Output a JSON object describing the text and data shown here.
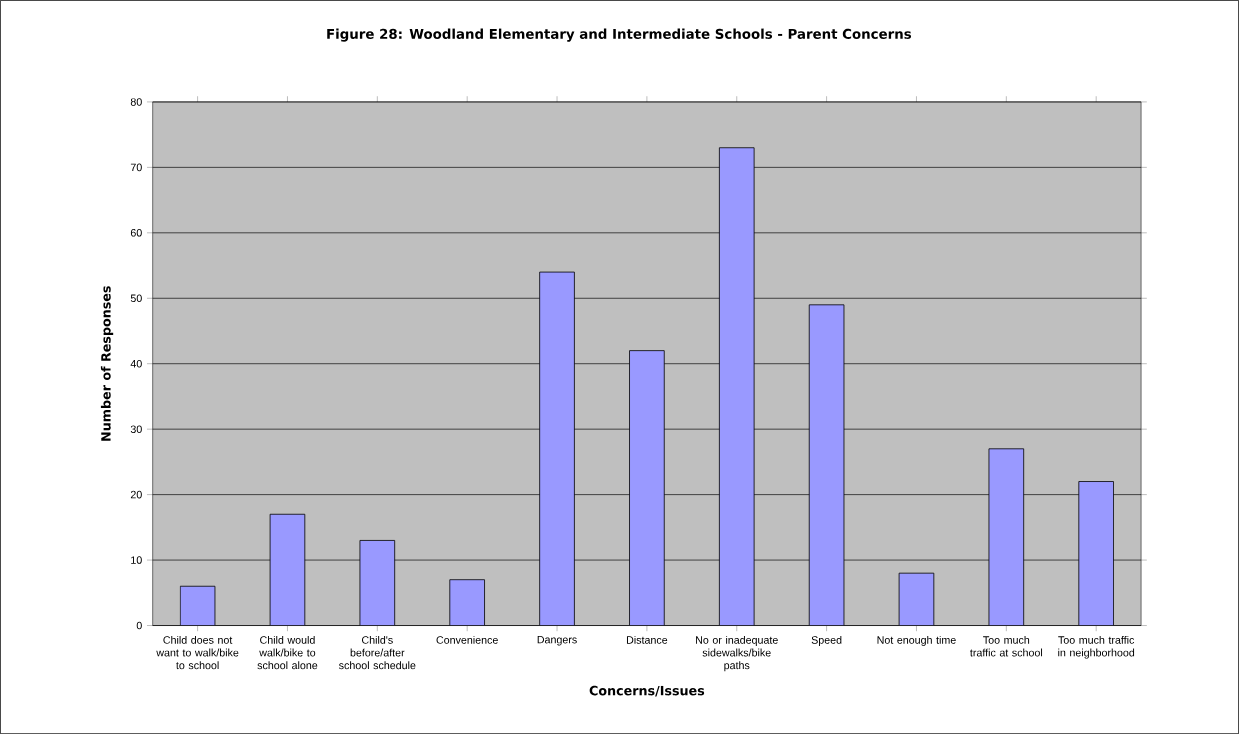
{
  "chart_data": {
    "type": "bar",
    "title": "Figure 28: Woodland Elementary and Intermediate Schools - Parent Concerns",
    "xlabel": "Concerns/Issues",
    "ylabel": "Number of Responses",
    "categories": [
      "Child does not want to walk/bike to school",
      "Child would walk/bike to school alone",
      "Child's before/after school schedule",
      "Convenience",
      "Dangers",
      "Distance",
      "No or inadequate sidewalks/bike paths",
      "Speed",
      "Not enough time",
      "Too much traffic at school",
      "Too much traffic in neighborhood"
    ],
    "values": [
      6,
      17,
      13,
      7,
      54,
      42,
      73,
      49,
      8,
      27,
      22
    ],
    "color": "#9999ff",
    "ylim": [
      0,
      80
    ],
    "yticks": [
      0,
      10,
      20,
      30,
      40,
      50,
      60,
      70,
      80
    ],
    "grid": "y"
  }
}
